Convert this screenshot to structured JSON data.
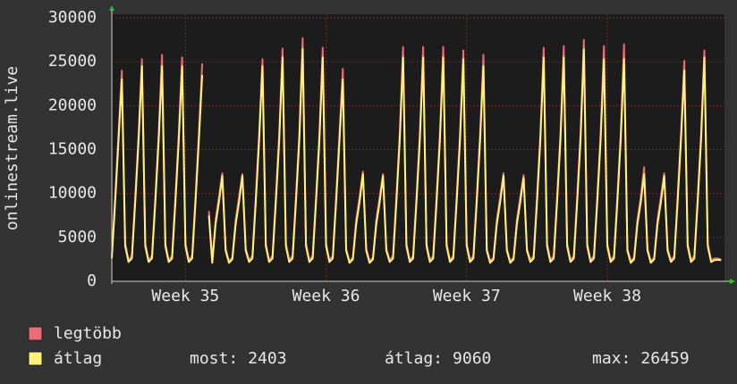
{
  "chart_data": {
    "type": "line",
    "y_label": "onlinestream.live",
    "ylim": [
      0,
      30000
    ],
    "yticks": [
      0,
      5000,
      10000,
      15000,
      20000,
      25000,
      30000
    ],
    "xlim": [
      0,
      183
    ],
    "xticks": [
      {
        "value": 22,
        "label": "Week 35"
      },
      {
        "value": 64,
        "label": "Week 36"
      },
      {
        "value": 106,
        "label": "Week 37"
      },
      {
        "value": 148,
        "label": "Week 38"
      }
    ],
    "grid": true,
    "series": [
      {
        "name": "legtöbb",
        "color": "#ee6a74",
        "values": [
          2900,
          9600,
          16800,
          24000,
          4300,
          2400,
          2900,
          9600,
          16800,
          25300,
          4300,
          2400,
          2900,
          9600,
          16800,
          25800,
          4300,
          2400,
          2900,
          9600,
          16800,
          25500,
          4300,
          2400,
          2900,
          9600,
          16800,
          24800,
          null,
          8000,
          2300,
          7000,
          9600,
          12300,
          3700,
          2300,
          2700,
          7000,
          9600,
          12200,
          3700,
          2400,
          2900,
          9600,
          16800,
          25300,
          4300,
          2400,
          2900,
          9600,
          16800,
          26500,
          4300,
          2400,
          2900,
          9600,
          16800,
          27700,
          4300,
          2400,
          2900,
          9600,
          16800,
          26600,
          4300,
          2400,
          2900,
          9600,
          16800,
          24200,
          3700,
          2300,
          2700,
          7000,
          9600,
          12500,
          3700,
          2300,
          2700,
          7000,
          9600,
          12200,
          3700,
          2400,
          2900,
          9600,
          16800,
          26700,
          4300,
          2400,
          2900,
          9600,
          16800,
          26700,
          4300,
          2400,
          2900,
          9600,
          16800,
          26700,
          4300,
          2400,
          2900,
          9600,
          16800,
          26300,
          4300,
          2400,
          2900,
          9600,
          16800,
          25800,
          3700,
          2300,
          2700,
          7000,
          9600,
          12300,
          3700,
          2300,
          2700,
          7000,
          9600,
          12100,
          3700,
          2400,
          2900,
          9600,
          16800,
          26600,
          4300,
          2400,
          2900,
          9600,
          16800,
          26800,
          4300,
          2400,
          2900,
          9600,
          16800,
          27500,
          4300,
          2400,
          2900,
          9600,
          16800,
          26800,
          4300,
          2400,
          2900,
          9600,
          16800,
          27000,
          3700,
          2300,
          2700,
          7000,
          9600,
          13000,
          3700,
          2300,
          2700,
          7000,
          9600,
          12300,
          3700,
          2400,
          2900,
          9600,
          16800,
          25100,
          4300,
          2400,
          2900,
          9600,
          16800,
          26300,
          4300,
          2400,
          2600,
          2600,
          2500
        ]
      },
      {
        "name": "átlag",
        "color": "#fff27a",
        "values": [
          2600,
          9000,
          16000,
          23000,
          4000,
          2200,
          2600,
          9000,
          16000,
          24500,
          4000,
          2200,
          2600,
          9000,
          16000,
          24500,
          4000,
          2200,
          2600,
          9000,
          16000,
          24500,
          4000,
          2200,
          2600,
          9000,
          16000,
          23500,
          null,
          7500,
          2100,
          6500,
          9000,
          12000,
          3500,
          2100,
          2500,
          6500,
          9000,
          12000,
          3500,
          2200,
          2600,
          9000,
          16000,
          24500,
          4000,
          2200,
          2600,
          9000,
          16000,
          25500,
          4000,
          2200,
          2600,
          9000,
          16000,
          26459,
          4000,
          2200,
          2600,
          9000,
          16000,
          25500,
          4000,
          2200,
          2600,
          9000,
          16000,
          23000,
          3500,
          2100,
          2500,
          6500,
          9000,
          12200,
          3500,
          2100,
          2500,
          6500,
          9000,
          12000,
          3500,
          2200,
          2600,
          9000,
          16000,
          25500,
          4000,
          2200,
          2600,
          9000,
          16000,
          25500,
          4000,
          2200,
          2600,
          9000,
          16000,
          25500,
          4000,
          2200,
          2600,
          9000,
          16000,
          25300,
          4000,
          2200,
          2600,
          9000,
          16000,
          24500,
          3500,
          2100,
          2500,
          6500,
          9000,
          12000,
          3500,
          2100,
          2500,
          6500,
          9000,
          11800,
          3500,
          2200,
          2600,
          9000,
          16000,
          25500,
          4000,
          2200,
          2600,
          9000,
          16000,
          25500,
          4000,
          2200,
          2600,
          9000,
          16000,
          26400,
          4000,
          2200,
          2600,
          9000,
          16000,
          25300,
          4000,
          2200,
          2600,
          9000,
          16000,
          25300,
          3500,
          2100,
          2500,
          6500,
          9000,
          12200,
          3500,
          2100,
          2500,
          6500,
          9000,
          12000,
          3500,
          2200,
          2600,
          9000,
          16000,
          24000,
          4000,
          2200,
          2600,
          9000,
          16000,
          25500,
          4000,
          2200,
          2400,
          2450,
          2403
        ]
      }
    ],
    "stats": [
      {
        "label": "most:",
        "value": 2403
      },
      {
        "label": "átlag:",
        "value": 9060
      },
      {
        "label": "max:",
        "value": 26459
      }
    ]
  }
}
